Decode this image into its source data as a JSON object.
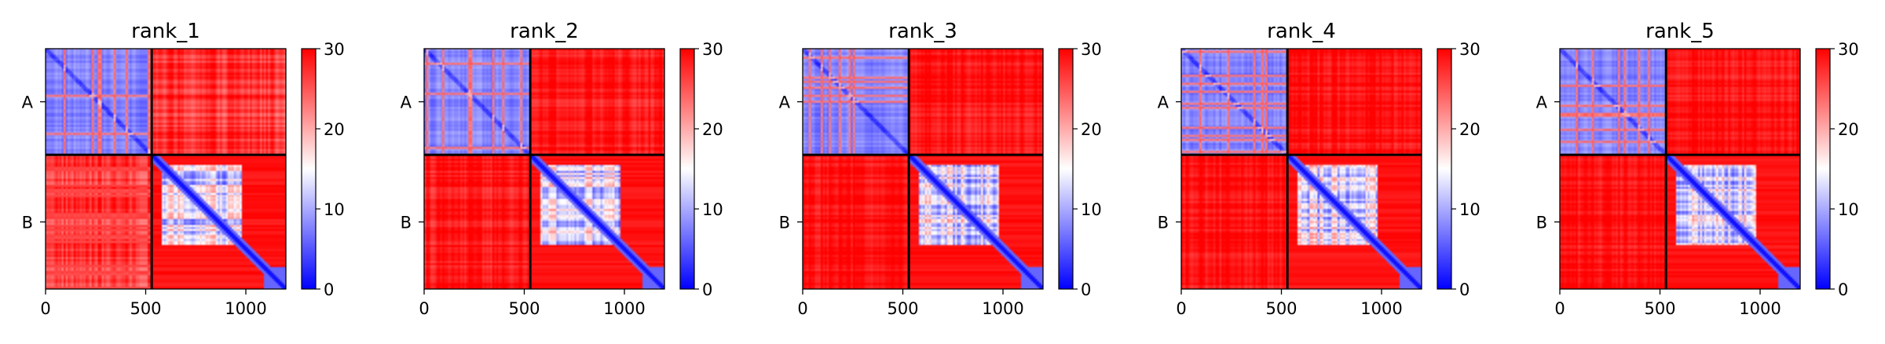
{
  "chart_data": {
    "type": "heatmap",
    "description_values": "Predicted aligned error style matrices (0-30 scale) for a two-chain complex, chains A (residues ~1-530) and B (~530-1200).",
    "colorbar": {
      "min": 0,
      "max": 30,
      "ticks": [
        0,
        10,
        20,
        30
      ],
      "colormap": "bwr"
    },
    "x_ticks": [
      0,
      500,
      1000
    ],
    "x_range": [
      0,
      1200
    ],
    "chain_labels": [
      "A",
      "B"
    ],
    "chain_boundaries": [
      0,
      530,
      1200
    ],
    "panels": [
      {
        "title": "rank_1",
        "offdiag_mean": 27,
        "intra_a_mean": 5,
        "intra_b_mean": 13
      },
      {
        "title": "rank_2",
        "offdiag_mean": 28.5,
        "intra_a_mean": 5,
        "intra_b_mean": 13
      },
      {
        "title": "rank_3",
        "offdiag_mean": 29,
        "intra_a_mean": 5,
        "intra_b_mean": 13
      },
      {
        "title": "rank_4",
        "offdiag_mean": 29,
        "intra_a_mean": 5,
        "intra_b_mean": 13
      },
      {
        "title": "rank_5",
        "offdiag_mean": 29,
        "intra_a_mean": 5,
        "intra_b_mean": 13
      }
    ]
  }
}
